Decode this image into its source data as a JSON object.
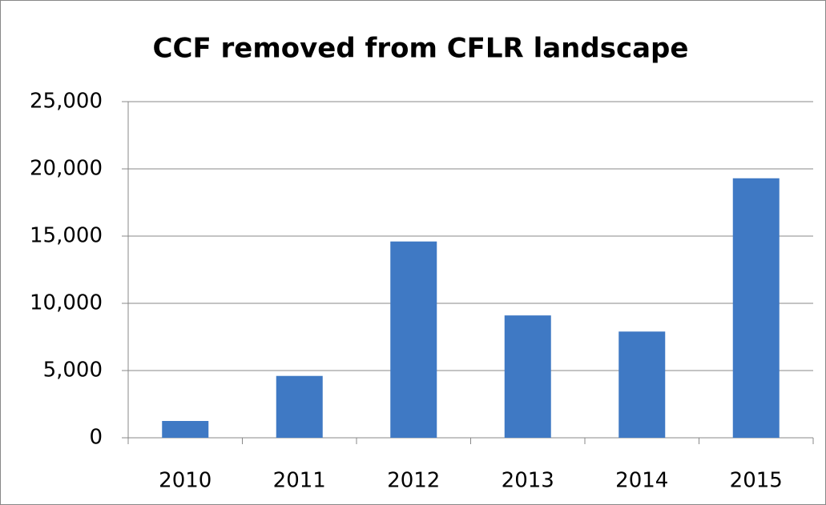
{
  "chart_data": {
    "type": "bar",
    "title": "CCF removed from CFLR landscape",
    "categories": [
      "2010",
      "2011",
      "2012",
      "2013",
      "2014",
      "2015"
    ],
    "values": [
      1250,
      4600,
      14600,
      9100,
      7900,
      19300
    ],
    "color": "#3f79c4",
    "ylim": [
      0,
      25000
    ],
    "yticks": [
      0,
      {
        "value": 5000,
        "label": "5,000"
      },
      {
        "value": 10000,
        "label": "10,000"
      },
      {
        "value": 15000,
        "label": "15,000"
      },
      {
        "value": 20000,
        "label": "20,000"
      },
      {
        "value": 25000,
        "label": "25,000"
      }
    ],
    "grid": true
  }
}
